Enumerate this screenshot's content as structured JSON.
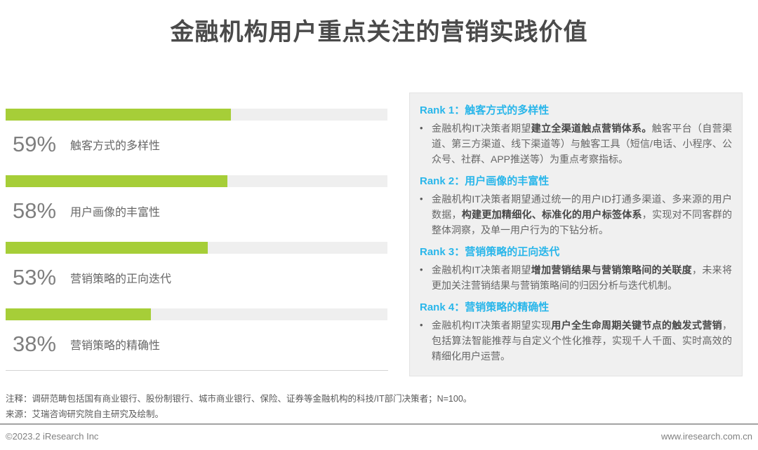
{
  "title": "金融机构用户重点关注的营销实践价值",
  "colors": {
    "bar_green": "#a6ce38",
    "track_gray": "#efefef",
    "heading_blue": "#29b6ea",
    "panel_bg": "#f0f0f0"
  },
  "chart_data": {
    "type": "bar",
    "orientation": "horizontal",
    "title": "金融机构用户重点关注的营销实践价值",
    "categories": [
      "触客方式的多样性",
      "用户画像的丰富性",
      "营销策略的正向迭代",
      "营销策略的精确性"
    ],
    "values": [
      59,
      58,
      53,
      38
    ],
    "unit": "%",
    "xlim": [
      0,
      100
    ],
    "grid": false,
    "legend_position": "none",
    "data_labels": [
      "59%",
      "58%",
      "53%",
      "38%"
    ]
  },
  "bars": [
    {
      "percent_label": "59%",
      "label": "触客方式的多样性"
    },
    {
      "percent_label": "58%",
      "label": "用户画像的丰富性"
    },
    {
      "percent_label": "53%",
      "label": "营销策略的正向迭代"
    },
    {
      "percent_label": "38%",
      "label": "营销策略的精确性"
    }
  ],
  "panel": {
    "sections": [
      {
        "heading": "Rank 1：触客方式的多样性",
        "bullet_char": "•",
        "seg0": "金融机构IT决策者期望",
        "seg1": "建立全渠道触点营销体系。",
        "seg2": "触客平台（自营渠道、第三方渠道、线下渠道等）与触客工具（短信/电话、小程序、公众号、社群、APP推送等）为重点考察指标。"
      },
      {
        "heading": "Rank 2：用户画像的丰富性",
        "bullet_char": "•",
        "seg0": "金融机构IT决策者期望通过统一的用户ID打通多渠道、多来源的用户数据，",
        "seg1": "构建更加精细化、标准化的用户标签体系",
        "seg2": "，实现对不同客群的整体洞察，及单一用户行为的下钻分析。"
      },
      {
        "heading": "Rank 3：营销策略的正向迭代",
        "bullet_char": "•",
        "seg0": "金融机构IT决策者期望",
        "seg1": "增加营销结果与营销策略间的关联度",
        "seg2": "，未来将更加关注营销结果与营销策略间的归因分析与迭代机制。"
      },
      {
        "heading": "Rank 4：营销策略的精确性",
        "bullet_char": "•",
        "seg0": "金融机构IT决策者期望实现",
        "seg1": "用户全生命周期关键节点的触发式营销",
        "seg2": "，包括算法智能推荐与自定义个性化推荐，实现千人千面、实时高效的精细化用户运营。"
      }
    ]
  },
  "notes": {
    "note": "注释：调研范畴包括国有商业银行、股份制银行、城市商业银行、保险、证券等金融机构的科技/IT部门决策者；N=100。",
    "source": "来源：艾瑞咨询研究院自主研究及绘制。"
  },
  "footer": {
    "copyright": "©2023.2 iResearch Inc",
    "website": "www.iresearch.com.cn"
  }
}
